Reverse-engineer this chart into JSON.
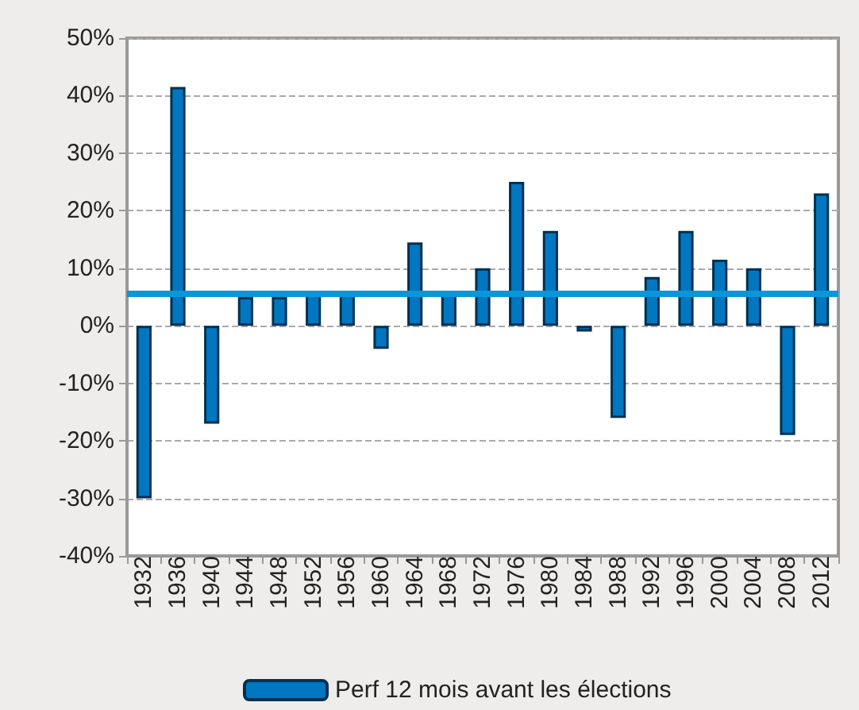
{
  "chart_data": {
    "type": "bar",
    "categories": [
      "1932",
      "1936",
      "1940",
      "1944",
      "1948",
      "1952",
      "1956",
      "1960",
      "1964",
      "1968",
      "1972",
      "1976",
      "1980",
      "1984",
      "1988",
      "1992",
      "1996",
      "2000",
      "2004",
      "2008",
      "2012"
    ],
    "series": [
      {
        "name": "Perf 12 mois avant les élections",
        "color": "#0077c0",
        "values": [
          -30,
          41.5,
          -17,
          5,
          5,
          5.5,
          5.5,
          -4,
          14.5,
          6,
          10,
          25,
          16.5,
          -1,
          -16,
          8.5,
          16.5,
          11.5,
          10,
          -19,
          23
        ]
      }
    ],
    "ylim": [
      -40,
      50
    ],
    "yticks": [
      {
        "value": -40,
        "label": "-40%"
      },
      {
        "value": -30,
        "label": "-30%"
      },
      {
        "value": -20,
        "label": "-20%"
      },
      {
        "value": -10,
        "label": "-10%"
      },
      {
        "value": 0,
        "label": "0%"
      },
      {
        "value": 10,
        "label": "10%"
      },
      {
        "value": 20,
        "label": "20%"
      },
      {
        "value": 30,
        "label": "30%"
      },
      {
        "value": 40,
        "label": "40%"
      },
      {
        "value": 50,
        "label": "50%"
      }
    ],
    "ref_lines": [
      {
        "axis": "y",
        "value": 5.6,
        "label": null,
        "color": "#0a97d9"
      }
    ],
    "grid": "y",
    "legend": "bottom"
  }
}
